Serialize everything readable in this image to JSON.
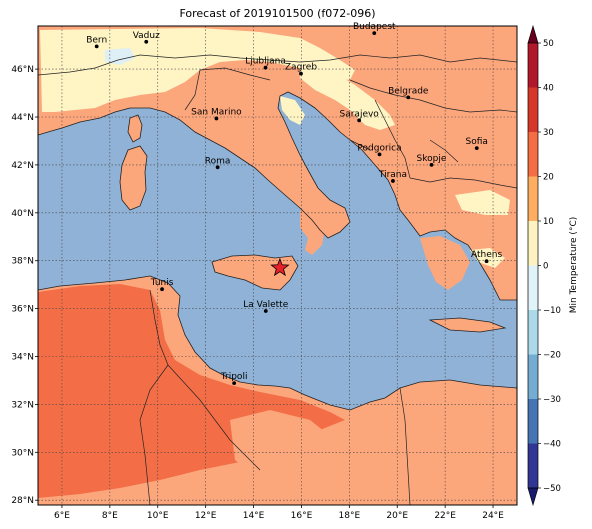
{
  "title": "Forecast of 2019101500 (f072-096)",
  "colorbar": {
    "label": "Min Temperature (°C)",
    "ticks": [
      "50",
      "40",
      "30",
      "20",
      "10",
      "0",
      "−10",
      "−20",
      "−30",
      "−40",
      "−50"
    ],
    "colors": [
      "#67001f",
      "#b2182b",
      "#d6372a",
      "#f46d43",
      "#fdae61",
      "#fef2c0",
      "#e0f3f8",
      "#abd9e9",
      "#74add1",
      "#4575b4",
      "#313695",
      "#1a1a6e"
    ]
  },
  "axes": {
    "lon_ticks": [
      "6°E",
      "8°E",
      "10°E",
      "12°E",
      "14°E",
      "16°E",
      "18°E",
      "20°E",
      "22°E",
      "24°E"
    ],
    "lat_ticks": [
      "46°N",
      "44°N",
      "42°N",
      "40°N",
      "38°N",
      "36°N",
      "34°N",
      "32°N",
      "30°N",
      "28°N"
    ]
  },
  "colors": {
    "sea": "#8fb2d6",
    "land_mild": "#fca67c",
    "land_warm": "#f36e47",
    "land_cool": "#fef4c4",
    "land_cold": "#dfeff6",
    "marker": "#e8202a"
  },
  "cities": [
    {
      "name": "Bern",
      "lon": 7.45,
      "lat": 46.95
    },
    {
      "name": "Vaduz",
      "lon": 9.52,
      "lat": 47.14
    },
    {
      "name": "Budapest",
      "lon": 19.04,
      "lat": 47.5
    },
    {
      "name": "Ljubljana",
      "lon": 14.5,
      "lat": 46.06
    },
    {
      "name": "Zagreb",
      "lon": 15.98,
      "lat": 45.81
    },
    {
      "name": "Belgrade",
      "lon": 20.46,
      "lat": 44.82
    },
    {
      "name": "San Marino",
      "lon": 12.45,
      "lat": 43.94
    },
    {
      "name": "Sarajevo",
      "lon": 18.41,
      "lat": 43.86
    },
    {
      "name": "Sofia",
      "lon": 23.32,
      "lat": 42.7
    },
    {
      "name": "Roma",
      "lon": 12.5,
      "lat": 41.9
    },
    {
      "name": "Podgorica",
      "lon": 19.26,
      "lat": 42.44
    },
    {
      "name": "Skopje",
      "lon": 21.43,
      "lat": 42.0
    },
    {
      "name": "Tirana",
      "lon": 19.82,
      "lat": 41.33
    },
    {
      "name": "Athens",
      "lon": 23.73,
      "lat": 37.98
    },
    {
      "name": "Tunis",
      "lon": 10.18,
      "lat": 36.81
    },
    {
      "name": "La Valette",
      "lon": 14.51,
      "lat": 35.9
    },
    {
      "name": "Tripoli",
      "lon": 13.19,
      "lat": 32.89
    }
  ],
  "marker": {
    "name": "forecast-point",
    "lon": 15.1,
    "lat": 37.7
  }
}
